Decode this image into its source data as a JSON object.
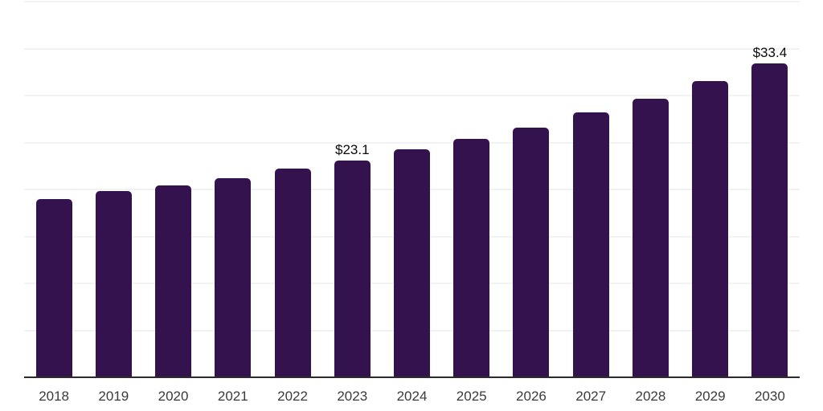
{
  "chart_data": {
    "type": "bar",
    "title": "",
    "xlabel": "",
    "ylabel": "",
    "categories": [
      "2018",
      "2019",
      "2020",
      "2021",
      "2022",
      "2023",
      "2024",
      "2025",
      "2026",
      "2027",
      "2028",
      "2029",
      "2030"
    ],
    "values": [
      19.0,
      19.8,
      20.4,
      21.2,
      22.2,
      23.1,
      24.3,
      25.4,
      26.6,
      28.2,
      29.7,
      31.5,
      33.4
    ],
    "data_labels": [
      null,
      null,
      null,
      null,
      null,
      "$23.1",
      null,
      null,
      null,
      null,
      null,
      null,
      "$33.4"
    ],
    "ylim": [
      0,
      40
    ],
    "grid_step": 5,
    "grid": "horizontal-only",
    "y_axis_tick_labels_visible": false,
    "legend": null,
    "colors": {
      "bar": "#33124E",
      "grid": "#f3f3f4",
      "axis": "#2b2b2b",
      "tick_label": "#3a3a3a",
      "data_label": "#0a0a0a",
      "background": "#ffffff"
    }
  }
}
